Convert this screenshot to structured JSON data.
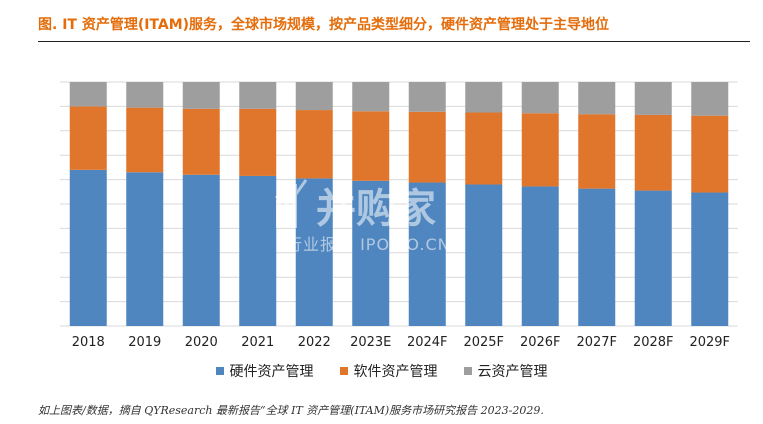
{
  "title": "图.  IT 资产管理(ITAM)服务，全球市场规模，按产品类型细分，硬件资产管理处于主导地位",
  "source": "如上图表/数据，摘自 QYResearch 最新报告“全球 IT 资产管理(ITAM)服务市场研究报告 2023-2029.",
  "watermark": {
    "brand": "并购家",
    "sub": "行业报告 IPOIPO.CN"
  },
  "colors": {
    "hardware": "#4f86c0",
    "software": "#e0762c",
    "cloud": "#9e9e9e",
    "title": "#e46c0a",
    "grid": "#d9d9d9"
  },
  "chart_data": {
    "type": "bar",
    "stacked": true,
    "normalized": true,
    "categories": [
      "2018",
      "2019",
      "2020",
      "2021",
      "2022",
      "2023E",
      "2024F",
      "2025F",
      "2026F",
      "2027F",
      "2028F",
      "2029F"
    ],
    "series": [
      {
        "name": "硬件资产管理",
        "color": "#4f86c0",
        "values": [
          64,
          63,
          62,
          61.5,
          60.5,
          59.5,
          58.8,
          58,
          57.2,
          56.3,
          55.5,
          54.7
        ]
      },
      {
        "name": "软件资产管理",
        "color": "#e0762c",
        "values": [
          26,
          26.5,
          27,
          27.5,
          28,
          28.5,
          29,
          29.5,
          30,
          30.5,
          31,
          31.5
        ]
      },
      {
        "name": "云资产管理",
        "color": "#9e9e9e",
        "values": [
          10,
          10.5,
          11,
          11,
          11.5,
          12,
          12.2,
          12.5,
          12.8,
          13.2,
          13.5,
          13.8
        ]
      }
    ],
    "ylim": [
      0,
      100
    ],
    "grid": true,
    "legend": "bottom"
  }
}
